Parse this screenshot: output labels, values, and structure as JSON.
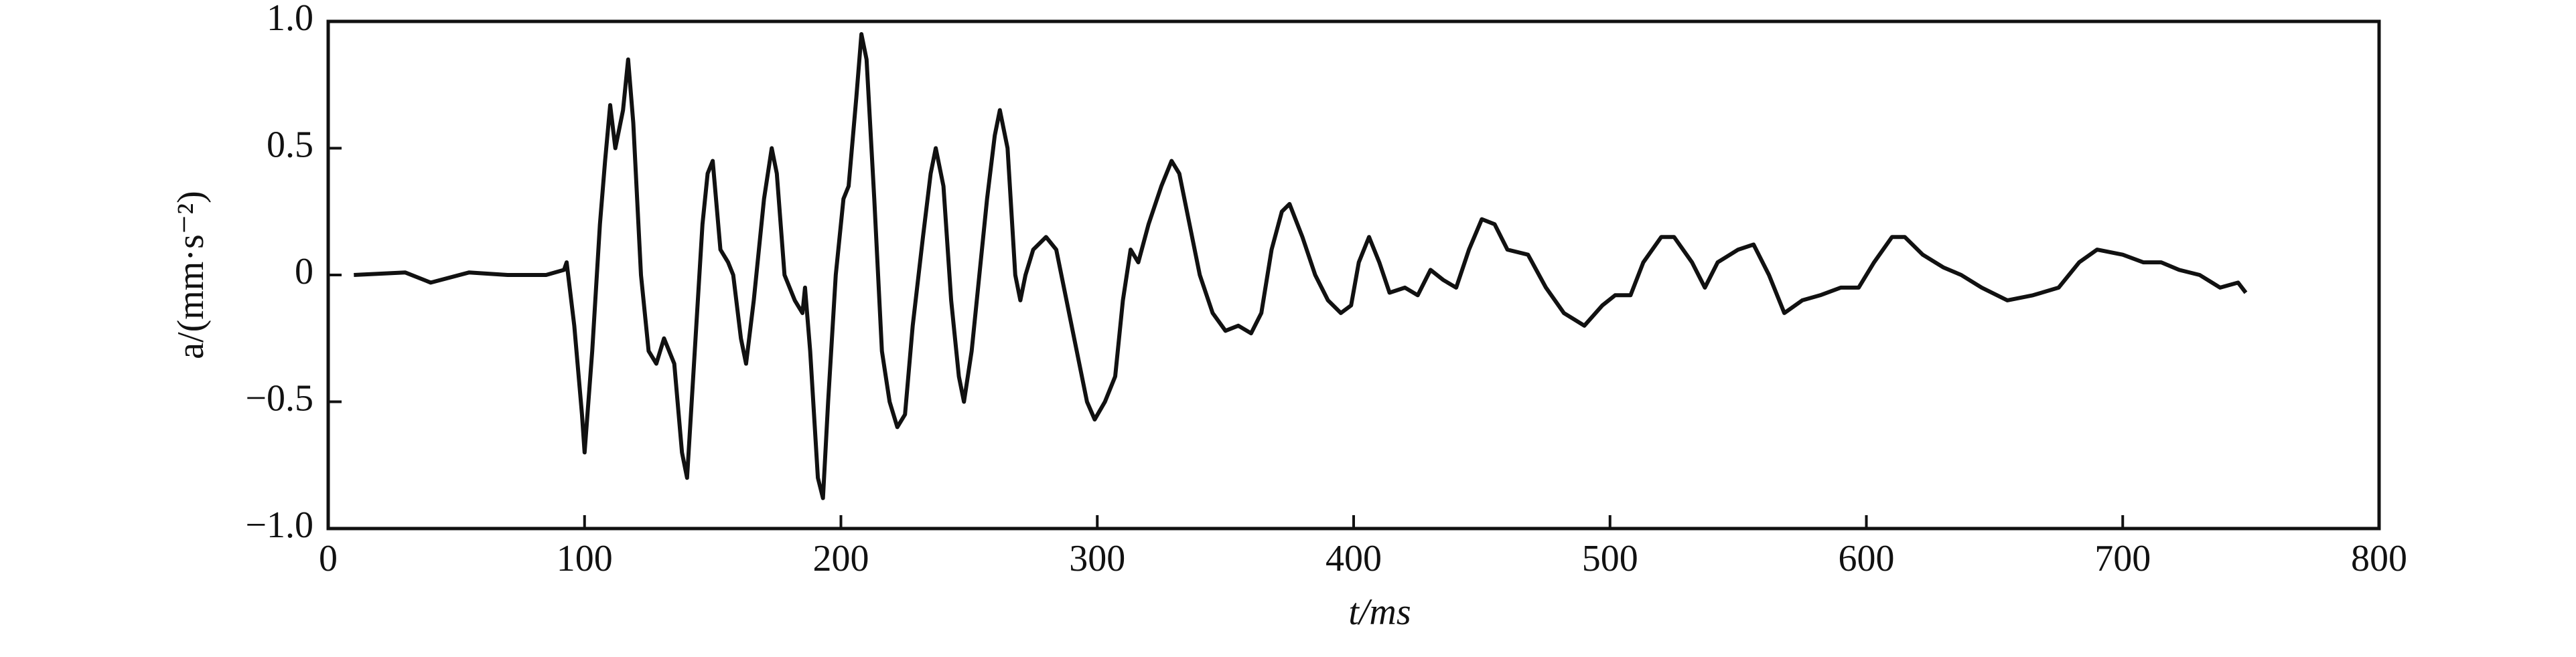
{
  "chart_data": {
    "type": "line",
    "xlabel": "t/ms",
    "ylabel": "a/(mm·s⁻²)",
    "x": [
      10,
      30,
      40,
      55,
      70,
      85,
      92,
      93,
      96,
      99,
      100,
      103,
      106,
      108,
      110,
      112,
      115,
      117,
      119,
      122,
      125,
      128,
      131,
      135,
      138,
      140,
      143,
      146,
      148,
      150,
      153,
      156,
      158,
      161,
      163,
      166,
      170,
      173,
      175,
      178,
      182,
      185,
      186,
      188,
      191,
      193,
      195,
      198,
      201,
      203,
      206,
      208,
      210,
      213,
      216,
      219,
      222,
      225,
      228,
      232,
      235,
      237,
      240,
      243,
      246,
      248,
      251,
      254,
      257,
      260,
      262,
      265,
      268,
      270,
      272,
      275,
      280,
      284,
      288,
      292,
      296,
      299,
      303,
      307,
      310,
      313,
      316,
      320,
      325,
      329,
      332,
      336,
      340,
      345,
      350,
      355,
      360,
      364,
      368,
      372,
      375,
      380,
      385,
      390,
      395,
      399,
      402,
      406,
      410,
      414,
      420,
      425,
      430,
      435,
      440,
      445,
      450,
      455,
      460,
      468,
      475,
      482,
      490,
      497,
      502,
      508,
      513,
      520,
      525,
      532,
      537,
      542,
      550,
      556,
      562,
      568,
      575,
      582,
      590,
      597,
      603,
      610,
      615,
      622,
      630,
      637,
      645,
      655,
      665,
      675,
      683,
      690,
      700,
      708,
      715,
      722,
      730,
      738,
      745,
      748
    ],
    "values": [
      0,
      0.01,
      -0.03,
      0.01,
      0,
      0,
      0.02,
      0.05,
      -0.2,
      -0.55,
      -0.7,
      -0.3,
      0.2,
      0.45,
      0.67,
      0.5,
      0.65,
      0.85,
      0.6,
      0,
      -0.3,
      -0.35,
      -0.25,
      -0.35,
      -0.7,
      -0.8,
      -0.3,
      0.2,
      0.4,
      0.45,
      0.1,
      0.05,
      0,
      -0.25,
      -0.35,
      -0.1,
      0.3,
      0.5,
      0.4,
      0,
      -0.1,
      -0.15,
      -0.05,
      -0.3,
      -0.8,
      -0.88,
      -0.5,
      0,
      0.3,
      0.35,
      0.7,
      0.95,
      0.85,
      0.3,
      -0.3,
      -0.5,
      -0.6,
      -0.55,
      -0.2,
      0.15,
      0.4,
      0.5,
      0.35,
      -0.1,
      -0.4,
      -0.5,
      -0.3,
      0,
      0.3,
      0.55,
      0.65,
      0.5,
      0,
      -0.1,
      0,
      0.1,
      0.15,
      0.1,
      -0.1,
      -0.3,
      -0.5,
      -0.57,
      -0.5,
      -0.4,
      -0.1,
      0.1,
      0.05,
      0.2,
      0.35,
      0.45,
      0.4,
      0.2,
      0,
      -0.15,
      -0.22,
      -0.2,
      -0.23,
      -0.15,
      0.1,
      0.25,
      0.28,
      0.15,
      0,
      -0.1,
      -0.15,
      -0.12,
      0.05,
      0.15,
      0.05,
      -0.07,
      -0.05,
      -0.08,
      0.02,
      -0.02,
      -0.05,
      0.1,
      0.22,
      0.2,
      0.1,
      0.08,
      -0.05,
      -0.15,
      -0.2,
      -0.12,
      -0.08,
      -0.08,
      0.05,
      0.15,
      0.15,
      0.05,
      -0.05,
      0.05,
      0.1,
      0.12,
      0,
      -0.15,
      -0.1,
      -0.08,
      -0.05,
      -0.05,
      0.05,
      0.15,
      0.15,
      0.08,
      0.03,
      0,
      -0.05,
      -0.1,
      -0.08,
      -0.05,
      0.05,
      0.1,
      0.08,
      0.05,
      0.05,
      0.02,
      0,
      -0.05,
      -0.03,
      -0.07
    ],
    "color": "#111111",
    "xlim": [
      0,
      800
    ],
    "xticks": [
      0,
      100,
      200,
      300,
      400,
      500,
      600,
      700,
      800
    ],
    "ylim": [
      -1,
      1
    ],
    "yticks": [
      {
        "value": -1,
        "label": "−1.0"
      },
      {
        "value": -0.5,
        "label": "−0.5"
      },
      0,
      0.5,
      {
        "value": 1,
        "label": "1.0"
      }
    ]
  }
}
